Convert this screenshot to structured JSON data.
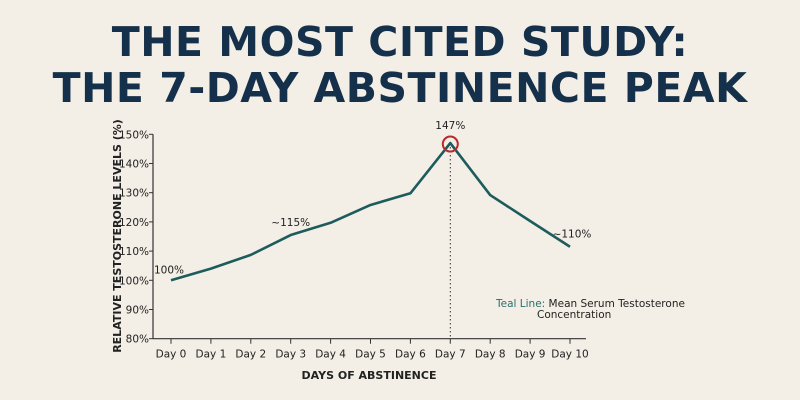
{
  "title_lines": [
    "THE MOST CITED STUDY:",
    "THE 7-DAY ABSTINENCE PEAK"
  ],
  "chart_data": {
    "type": "line",
    "categories": [
      "Day 0",
      "Day 1",
      "Day 2",
      "Day 3",
      "Day 4",
      "Day 5",
      "Day 6",
      "Day 7",
      "Day 8",
      "Day 9",
      "Day 10"
    ],
    "series": [
      {
        "values": [
          100,
          104,
          108.7,
          115.5,
          119.7,
          125.8,
          129.8,
          147,
          129.2,
          120.3,
          111.5
        ],
        "color": "#1d5c5c"
      }
    ],
    "xlabel": "DAYS OF ABSTINENCE",
    "ylabel": "RELATIVE TESTOSTERONE LEVELS (%)",
    "ylim": [
      80,
      150
    ],
    "yticks": [
      80,
      90,
      100,
      110,
      120,
      130,
      140,
      150
    ],
    "ytick_labels": [
      "80%",
      "90%",
      "100%",
      "110%",
      "120%",
      "130%",
      "140%",
      "150%"
    ],
    "grid": false,
    "annotations": [
      {
        "category_index": 0,
        "text": "100%"
      },
      {
        "category_index": 3,
        "text": "~115%"
      },
      {
        "category_index": 7,
        "text": "147%",
        "highlight": "circle",
        "highlight_color": "#b82a2a",
        "dotted_drop_line": true
      },
      {
        "category_index": 10,
        "text": "~110%"
      }
    ],
    "legend": {
      "placement": "bottom-right",
      "key": "Teal Line:",
      "text_line1": "Mean Serum Testosterone",
      "text_line2": "Concentration",
      "key_color": "#2a6e6e"
    }
  }
}
